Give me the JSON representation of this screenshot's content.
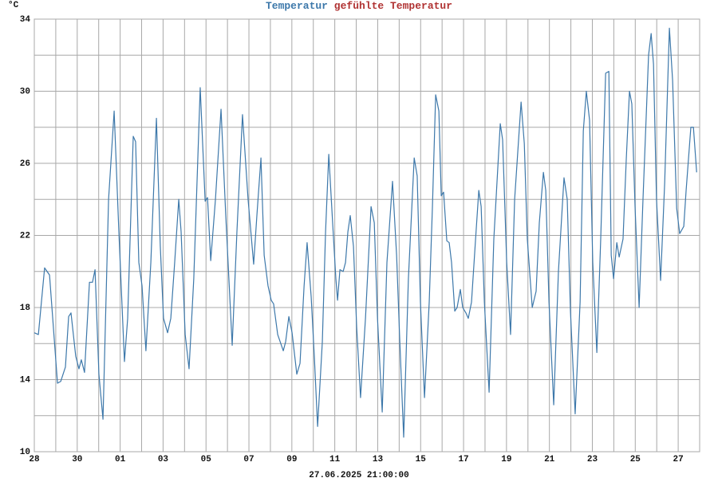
{
  "chart_data": {
    "type": "line",
    "y_label": "°C",
    "x_label": "27.06.2025 21:00:00",
    "extra_legend": {
      "name": "gefühlte Temperatur",
      "color": "#b03232"
    },
    "grid": true,
    "xlim": [
      0,
      31
    ],
    "xticks": [
      {
        "value": 0,
        "label": "28"
      },
      {
        "value": 2,
        "label": "30"
      },
      {
        "value": 4,
        "label": "01"
      },
      {
        "value": 6,
        "label": "03"
      },
      {
        "value": 8,
        "label": "05"
      },
      {
        "value": 10,
        "label": "07"
      },
      {
        "value": 12,
        "label": "09"
      },
      {
        "value": 14,
        "label": "11"
      },
      {
        "value": 16,
        "label": "13"
      },
      {
        "value": 18,
        "label": "15"
      },
      {
        "value": 20,
        "label": "17"
      },
      {
        "value": 22,
        "label": "19"
      },
      {
        "value": 24,
        "label": "21"
      },
      {
        "value": 26,
        "label": "23"
      },
      {
        "value": 28,
        "label": "25"
      },
      {
        "value": 30,
        "label": "27"
      }
    ],
    "ylim": [
      10,
      34
    ],
    "yticks": [
      10,
      14,
      18,
      22,
      26,
      30,
      34
    ],
    "x": [
      0,
      0.19,
      0.48,
      0.71,
      1.08,
      1.23,
      1.45,
      1.6,
      1.71,
      1.93,
      2.08,
      2.19,
      2.34,
      2.57,
      2.71,
      2.83,
      3.01,
      3.2,
      3.46,
      3.72,
      3.94,
      4.2,
      4.35,
      4.61,
      4.72,
      4.87,
      5.02,
      5.2,
      5.43,
      5.69,
      5.87,
      6.02,
      6.21,
      6.36,
      6.54,
      6.73,
      6.84,
      7.03,
      7.21,
      7.43,
      7.73,
      7.96,
      8.07,
      8.22,
      8.44,
      8.7,
      8.92,
      9.22,
      9.44,
      9.7,
      9.96,
      10.22,
      10.37,
      10.56,
      10.71,
      10.89,
      11.04,
      11.15,
      11.34,
      11.6,
      11.71,
      11.86,
      12.01,
      12.23,
      12.38,
      12.57,
      12.71,
      12.9,
      13.05,
      13.2,
      13.42,
      13.57,
      13.72,
      13.9,
      14.05,
      14.13,
      14.24,
      14.39,
      14.5,
      14.61,
      14.72,
      14.87,
      15.02,
      15.2,
      15.43,
      15.69,
      15.84,
      15.99,
      16.21,
      16.43,
      16.69,
      16.88,
      17.03,
      17.21,
      17.43,
      17.7,
      17.84,
      17.99,
      18.18,
      18.4,
      18.55,
      18.7,
      18.85,
      18.96,
      19.07,
      19.22,
      19.33,
      19.44,
      19.59,
      19.7,
      19.85,
      19.96,
      20.11,
      20.22,
      20.37,
      20.56,
      20.71,
      20.82,
      20.97,
      21.19,
      21.41,
      21.71,
      21.82,
      22.01,
      22.19,
      22.38,
      22.68,
      22.83,
      22.97,
      23.2,
      23.38,
      23.53,
      23.72,
      23.83,
      23.98,
      24.2,
      24.42,
      24.68,
      24.83,
      24.98,
      25.2,
      25.43,
      25.58,
      25.72,
      25.87,
      26.02,
      26.21,
      26.39,
      26.62,
      26.77,
      26.88,
      26.99,
      27.14,
      27.25,
      27.43,
      27.58,
      27.73,
      27.84,
      27.99,
      28.18,
      28.36,
      28.62,
      28.74,
      28.85,
      28.99,
      29.18,
      29.37,
      29.59,
      29.74,
      29.93,
      30.07,
      30.26,
      30.37,
      30.59,
      30.71,
      30.86
    ],
    "series": [
      {
        "name": "Temperatur",
        "color": "#3d78aa",
        "values": [
          16.6,
          16.5,
          20.2,
          19.8,
          13.8,
          13.9,
          14.7,
          17.5,
          17.7,
          15.3,
          14.6,
          15.1,
          14.4,
          19.4,
          19.4,
          20.1,
          14.3,
          11.8,
          24,
          28.9,
          22.2,
          15,
          17.4,
          27.5,
          27.2,
          20.5,
          19.2,
          15.6,
          20.5,
          28.5,
          21.4,
          17.4,
          16.6,
          17.4,
          20.5,
          24,
          22.2,
          16.5,
          14.6,
          19.6,
          30.2,
          23.9,
          24.1,
          20.6,
          24,
          29,
          23.1,
          15.9,
          22.2,
          28.7,
          24,
          20.4,
          23.1,
          26.3,
          20.9,
          19.2,
          18.4,
          18.2,
          16.5,
          15.6,
          16.1,
          17.5,
          16.6,
          14.3,
          14.9,
          19.2,
          21.6,
          18.6,
          15.2,
          11.4,
          16.1,
          22.2,
          26.5,
          22.7,
          19.6,
          18.4,
          20.1,
          20,
          20.5,
          22.2,
          23.1,
          21.4,
          16.9,
          13,
          17.4,
          23.6,
          22.7,
          17.4,
          12.2,
          20.5,
          25,
          20.9,
          16.1,
          10.8,
          19.6,
          26.3,
          25.3,
          18.3,
          13,
          18.3,
          23.6,
          29.8,
          28.9,
          24.2,
          24.4,
          21.7,
          21.6,
          20.5,
          17.8,
          18,
          19,
          18,
          17.7,
          17.4,
          18.3,
          21.8,
          24.5,
          23.6,
          18.3,
          13.3,
          21.8,
          28.2,
          27.3,
          20.5,
          16.5,
          24,
          29.4,
          27.1,
          21.8,
          18,
          18.9,
          22.7,
          25.5,
          24.5,
          18.3,
          12.6,
          20,
          25.2,
          24,
          17.8,
          12.1,
          18.3,
          27.8,
          30,
          28.4,
          20.5,
          15.5,
          21.8,
          31,
          31.1,
          20.9,
          19.6,
          21.6,
          20.8,
          21.8,
          26.2,
          30,
          29.3,
          23.6,
          18,
          24,
          32,
          33.2,
          31.5,
          24,
          19.5,
          24.9,
          33.5,
          30.6,
          23.5,
          22.1,
          22.5,
          24.5,
          28,
          28,
          25.5
        ]
      }
    ]
  }
}
